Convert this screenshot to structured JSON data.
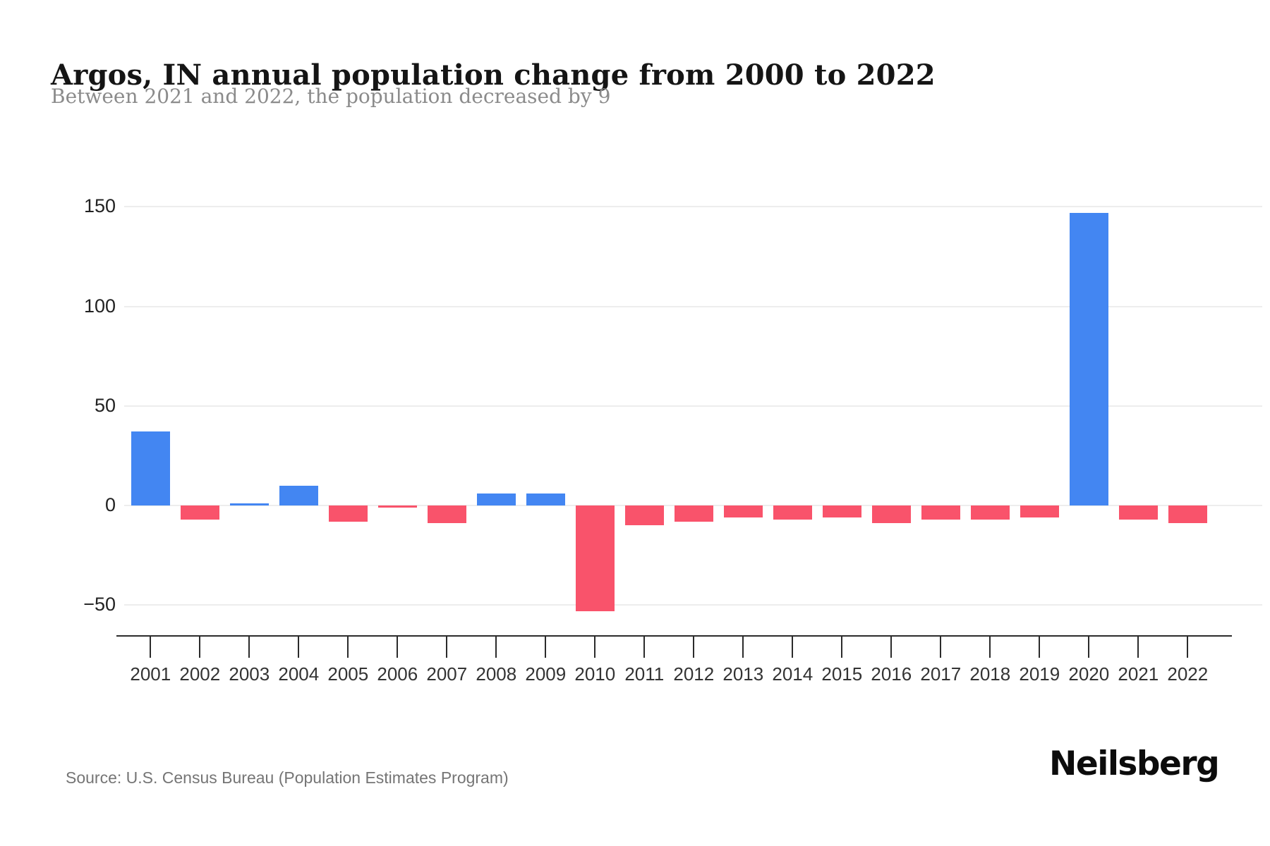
{
  "header": {
    "title": "Argos, IN annual population change from 2000 to 2022",
    "subtitle": "Between 2021 and 2022, the population decreased by 9"
  },
  "chart_data": {
    "type": "bar",
    "title": "Argos, IN annual population change from 2000 to 2022",
    "xlabel": "",
    "ylabel": "",
    "categories": [
      "2001",
      "2002",
      "2003",
      "2004",
      "2005",
      "2006",
      "2007",
      "2008",
      "2009",
      "2010",
      "2011",
      "2012",
      "2013",
      "2014",
      "2015",
      "2016",
      "2017",
      "2018",
      "2019",
      "2020",
      "2021",
      "2022"
    ],
    "values": [
      37,
      -7,
      1,
      10,
      -8,
      -1,
      -9,
      6,
      6,
      -53,
      -10,
      -8,
      -6,
      -7,
      -6,
      -9,
      -7,
      -7,
      -6,
      147,
      -7,
      -9
    ],
    "y_ticks": [
      150,
      100,
      50,
      0,
      -50
    ],
    "y_tick_labels": [
      "150",
      "100",
      "50",
      "0",
      "−50"
    ],
    "ylim": [
      -65,
      169
    ],
    "grid": true,
    "legend": "none",
    "colors": {
      "positive": "#4386F2",
      "negative": "#F9536B",
      "grid": "#ededed",
      "axis": "#2b2b2b",
      "label": "#333333"
    }
  },
  "footer": {
    "source": "Source: U.S. Census Bureau (Population Estimates Program)",
    "brand": "Neilsberg"
  }
}
